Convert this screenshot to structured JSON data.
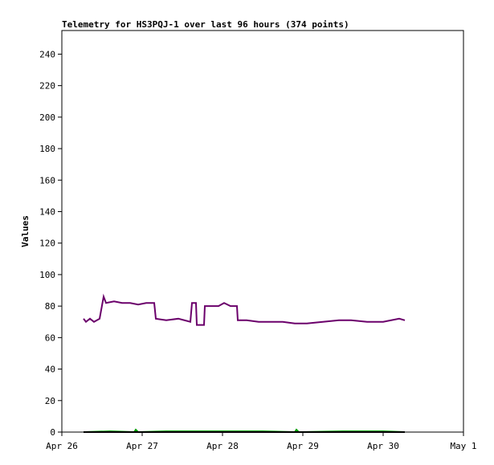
{
  "chart_data": {
    "type": "line",
    "title": "Telemetry for HS3PQJ-1 over last 96 hours (374 points)",
    "y_label": "Values",
    "xlim": [
      26,
      31
    ],
    "xticks": [
      {
        "value": 26,
        "label": "Apr 26"
      },
      {
        "value": 27,
        "label": "Apr 27"
      },
      {
        "value": 28,
        "label": "Apr 28"
      },
      {
        "value": 29,
        "label": "Apr 29"
      },
      {
        "value": 30,
        "label": "Apr 30"
      },
      {
        "value": 31,
        "label": "May 1"
      }
    ],
    "ylim": [
      0,
      255
    ],
    "yticks": [
      0,
      20,
      40,
      60,
      80,
      100,
      120,
      140,
      160,
      180,
      200,
      220,
      240
    ],
    "series": [
      {
        "color": "#6b006b",
        "x": [
          26.27,
          26.3,
          26.35,
          26.4,
          26.47,
          26.52,
          26.55,
          26.65,
          26.75,
          26.85,
          26.95,
          27.05,
          27.15,
          27.17,
          27.3,
          27.45,
          27.6,
          27.62,
          27.67,
          27.68,
          27.77,
          27.78,
          27.95,
          28.02,
          28.1,
          28.18,
          28.19,
          28.3,
          28.45,
          28.6,
          28.75,
          28.9,
          29.05,
          29.25,
          29.45,
          29.6,
          29.8,
          30.0,
          30.1,
          30.2,
          30.27
        ],
        "values": [
          72,
          70,
          72,
          70,
          72,
          86,
          82,
          83,
          82,
          82,
          81,
          82,
          82,
          72,
          71,
          72,
          70,
          82,
          82,
          68,
          68,
          80,
          80,
          82,
          80,
          80,
          71,
          71,
          70,
          70,
          70,
          69,
          69,
          70,
          71,
          71,
          70,
          70,
          71,
          72,
          71
        ]
      },
      {
        "color": "#00a000",
        "x": [
          26.27,
          26.6,
          26.9,
          26.92,
          26.95,
          27.3,
          27.5,
          28.0,
          28.5,
          28.9,
          28.92,
          28.95,
          29.5,
          30.0,
          30.27
        ],
        "values": [
          0,
          0.5,
          0,
          1.5,
          0,
          0.5,
          0.5,
          0.5,
          0.5,
          0,
          1.5,
          0,
          0.5,
          0.5,
          0
        ]
      },
      {
        "color": "#000000",
        "x": [
          26.27,
          30.27
        ],
        "values": [
          0,
          0
        ]
      }
    ]
  }
}
